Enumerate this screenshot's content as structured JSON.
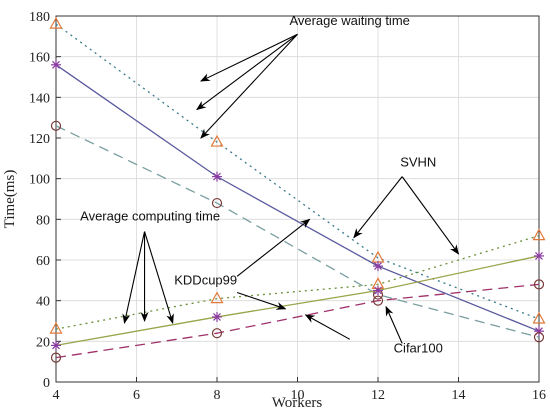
{
  "chart_data": {
    "type": "line",
    "xlabel": "Workers",
    "ylabel": "Time(ms)",
    "x": [
      4,
      8,
      12,
      16
    ],
    "xlim": [
      4,
      16
    ],
    "ylim": [
      0,
      180
    ],
    "xticks": [
      4,
      6,
      8,
      10,
      12,
      14,
      16
    ],
    "yticks": [
      0,
      20,
      40,
      60,
      80,
      100,
      120,
      140,
      160,
      180
    ],
    "grid": true,
    "series": [
      {
        "group": "SVHN waiting",
        "values": [
          176,
          118,
          61,
          31
        ],
        "color": "#3a7a8c",
        "dash": "2,4",
        "marker": "triangle"
      },
      {
        "group": "KDDcup99 waiting",
        "values": [
          156,
          101,
          57,
          25
        ],
        "color": "#5a5a9e",
        "dash": "",
        "marker": "asterisk"
      },
      {
        "group": "Cifar100 waiting",
        "values": [
          126,
          88,
          43,
          22
        ],
        "color": "#7a9ea0",
        "dash": "10,6",
        "marker": "circle"
      },
      {
        "group": "SVHN computing",
        "values": [
          26,
          41,
          48,
          72
        ],
        "color": "#6b8f3a",
        "dash": "2,4",
        "marker": "triangle"
      },
      {
        "group": "KDDcup99 computing",
        "values": [
          18,
          32,
          45,
          62
        ],
        "color": "#9aa44a",
        "dash": "",
        "marker": "asterisk"
      },
      {
        "group": "Cifar100 computing",
        "values": [
          12,
          24,
          40,
          48
        ],
        "color": "#a0306a",
        "dash": "10,6",
        "marker": "circle"
      }
    ],
    "marker_colors": {
      "triangle": "#e07a3a",
      "asterisk": "#8a3aa0",
      "circle": "#7a3a3a"
    },
    "annotations": [
      {
        "text": "Average waiting time",
        "at": [
          9.8,
          175.5
        ],
        "anchor": "start",
        "arrow_from": [
          10,
          171
        ],
        "arrows_to": [
          [
            7.6,
            148
          ],
          [
            7.5,
            134
          ],
          [
            7.6,
            120
          ]
        ]
      },
      {
        "text": "Average computing time",
        "at": [
          4.6,
          79.5
        ],
        "anchor": "start",
        "arrow_from": [
          6.2,
          74
        ],
        "arrows_to": [
          [
            5.7,
            29
          ],
          [
            6.2,
            30
          ],
          [
            6.9,
            29
          ]
        ]
      },
      {
        "text": "SVHN",
        "at": [
          13.0,
          106
        ],
        "anchor": "middle",
        "arrow_from": [
          12.6,
          101
        ],
        "arrows_to": [
          [
            11.4,
            71
          ],
          [
            14.0,
            63
          ]
        ]
      },
      {
        "text": "KDDcup99",
        "at": [
          8.5,
          48
        ],
        "anchor": "end",
        "arrow_from": [
          8.5,
          52
        ],
        "arrows_to": [
          [
            10.3,
            80
          ]
        ]
      },
      {
        "text": "KDDcup99",
        "at": [
          null,
          null
        ],
        "anchor": "none",
        "arrow_from": [
          8.5,
          44
        ],
        "arrows_to": [
          [
            9.7,
            36
          ]
        ]
      },
      {
        "text": "Cifar100",
        "at": [
          13.0,
          14.5
        ],
        "anchor": "middle",
        "arrow_from": [
          11.3,
          21
        ],
        "arrows_to": [
          [
            10.2,
            33
          ]
        ]
      },
      {
        "text": "Cifar100",
        "at": [
          null,
          null
        ],
        "anchor": "none",
        "arrow_from": [
          12.6,
          19
        ],
        "arrows_to": [
          [
            12.2,
            37
          ]
        ]
      }
    ]
  }
}
